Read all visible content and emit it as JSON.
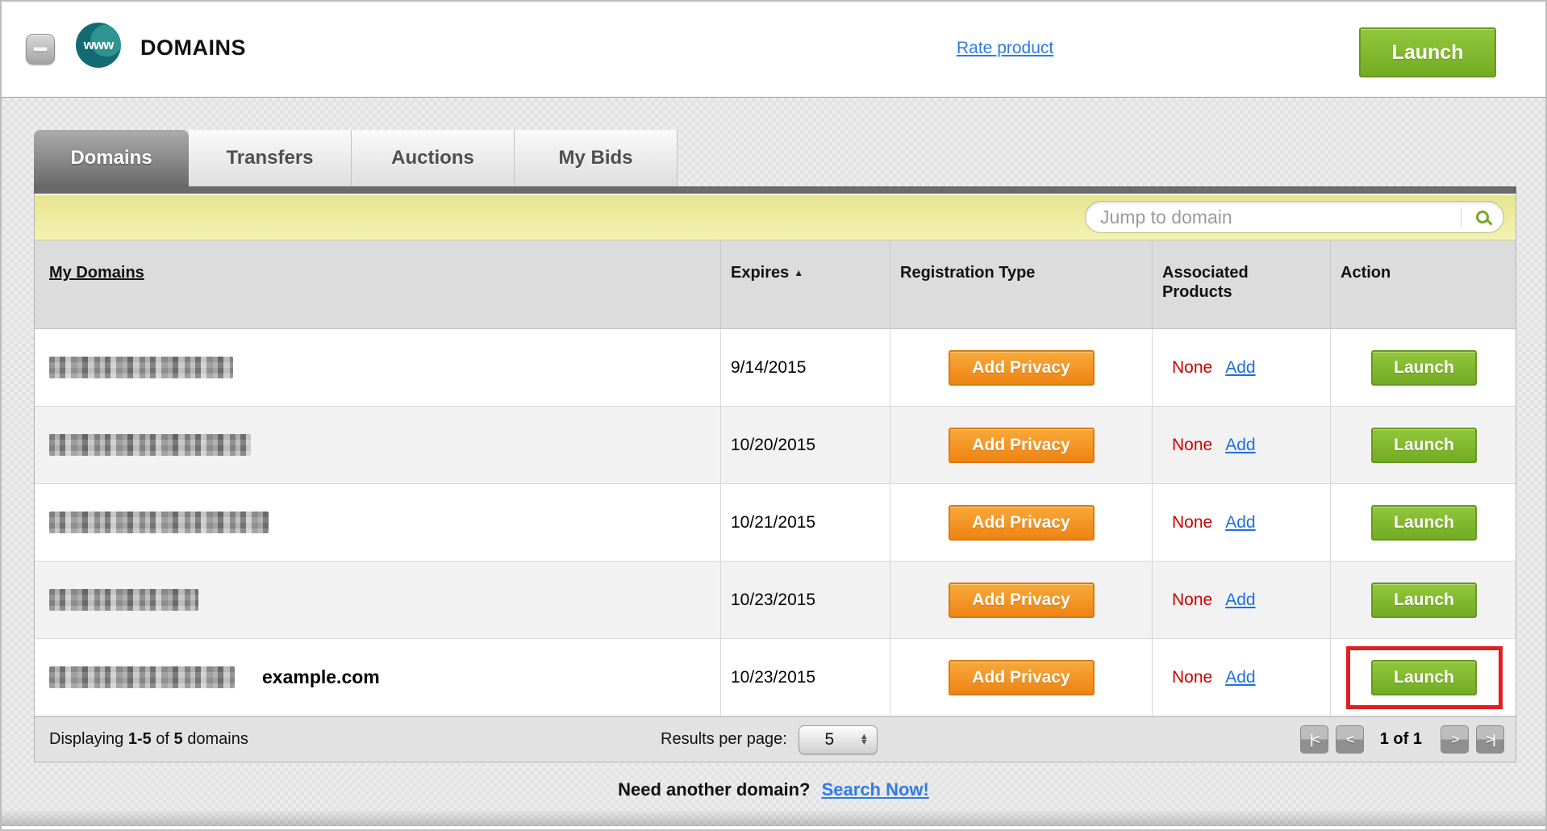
{
  "header": {
    "title": "DOMAINS",
    "badge": "www",
    "rate_link": "Rate product",
    "launch_button": "Launch"
  },
  "tabs": [
    {
      "label": "Domains",
      "active": true
    },
    {
      "label": "Transfers",
      "active": false
    },
    {
      "label": "Auctions",
      "active": false
    },
    {
      "label": "My Bids",
      "active": false
    }
  ],
  "search": {
    "placeholder": "Jump to domain"
  },
  "icons": {
    "sort_asc": "▲",
    "stepper_up": "▲",
    "stepper_down": "▼"
  },
  "table": {
    "columns": {
      "domains": "My Domains",
      "expires": "Expires",
      "registration": "Registration Type",
      "associated_line1": "Associated",
      "associated_line2": "Products",
      "action": "Action"
    },
    "rows": [
      {
        "domain": "(redacted)",
        "label": "",
        "expires": "9/14/2015",
        "privacy_button": "Add Privacy",
        "associated": "None",
        "add_link": "Add",
        "launch_button": "Launch",
        "highlighted": false
      },
      {
        "domain": "(redacted)",
        "label": "",
        "expires": "10/20/2015",
        "privacy_button": "Add Privacy",
        "associated": "None",
        "add_link": "Add",
        "launch_button": "Launch",
        "highlighted": false
      },
      {
        "domain": "(redacted)",
        "label": "",
        "expires": "10/21/2015",
        "privacy_button": "Add Privacy",
        "associated": "None",
        "add_link": "Add",
        "launch_button": "Launch",
        "highlighted": false
      },
      {
        "domain": "(redacted)",
        "label": "",
        "expires": "10/23/2015",
        "privacy_button": "Add Privacy",
        "associated": "None",
        "add_link": "Add",
        "launch_button": "Launch",
        "highlighted": false
      },
      {
        "domain": "(redacted)",
        "label": "example.com",
        "expires": "10/23/2015",
        "privacy_button": "Add Privacy",
        "associated": "None",
        "add_link": "Add",
        "launch_button": "Launch",
        "highlighted": true
      }
    ]
  },
  "footer": {
    "displaying": {
      "prefix": "Displaying",
      "range": "1-5",
      "mid": "of",
      "total": "5",
      "suffix": "domains"
    },
    "results_label": "Results per page:",
    "results_value": "5",
    "pagination": {
      "first": "|<",
      "prev": "<",
      "status": "1 of 1",
      "next": ">",
      "last": ">|"
    }
  },
  "bottom": {
    "question": "Need another domain?",
    "link": "Search Now!"
  },
  "colors": {
    "accent_green": "#73ab22",
    "accent_orange": "#ee8413",
    "link_blue": "#2e7be5",
    "alert_red": "#cc0000",
    "highlight_red": "#e02020",
    "search_bar_yellow": "#f0ed9e"
  }
}
